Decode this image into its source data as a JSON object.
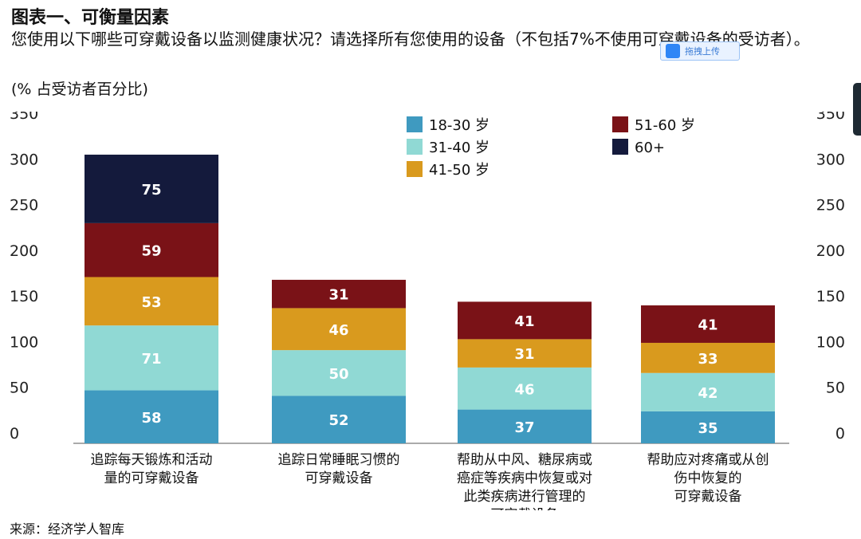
{
  "header": {
    "title": "图表一、可衡量因素",
    "question": "您使用以下哪些可穿戴设备以监测健康状况？请选择所有您使用的设备（不包括7%不使用可穿戴设备的受访者）。",
    "unit": "(% 占受访者百分比)",
    "source": "来源：经济学人智库"
  },
  "overlay": {
    "upload_label": "拖拽上传"
  },
  "chart_data": {
    "type": "bar",
    "stacked": true,
    "categories": [
      "追踪每天锻炼和活动量的可穿戴设备",
      "追踪日常睡眠习惯的可穿戴设备",
      "帮助从中风、糖尿病或癌症等疾病中恢复或对此类疾病进行管理的可穿戴设备",
      "帮助应对疼痛或从创伤中恢复的可穿戴设备"
    ],
    "category_lines": [
      [
        "追踪每天锻炼和活动",
        "量的可穿戴设备"
      ],
      [
        "追踪日常睡眠习惯的",
        "可穿戴设备"
      ],
      [
        "帮助从中风、糖尿病或",
        "癌症等疾病中恢复或对",
        "此类疾病进行管理的",
        "可穿戴设备"
      ],
      [
        "帮助应对疼痛或从创",
        "伤中恢复的",
        "可穿戴设备"
      ]
    ],
    "series": [
      {
        "name": "18-30 岁",
        "color": "#3f9ac0",
        "values": [
          58,
          52,
          37,
          35
        ]
      },
      {
        "name": "31-40 岁",
        "color": "#90d9d4",
        "values": [
          71,
          50,
          46,
          42
        ]
      },
      {
        "name": "41-50 岁",
        "color": "#d99a1e",
        "values": [
          53,
          46,
          31,
          33
        ]
      },
      {
        "name": "51-60 岁",
        "color": "#7a1217",
        "values": [
          59,
          31,
          41,
          41
        ]
      },
      {
        "name": "60+",
        "color": "#141a3c",
        "values": [
          75,
          0,
          0,
          0
        ]
      }
    ],
    "ylim": [
      0,
      350
    ],
    "yticks": [
      0,
      50,
      100,
      150,
      200,
      250,
      300,
      350
    ],
    "legend_position": "top-right"
  }
}
